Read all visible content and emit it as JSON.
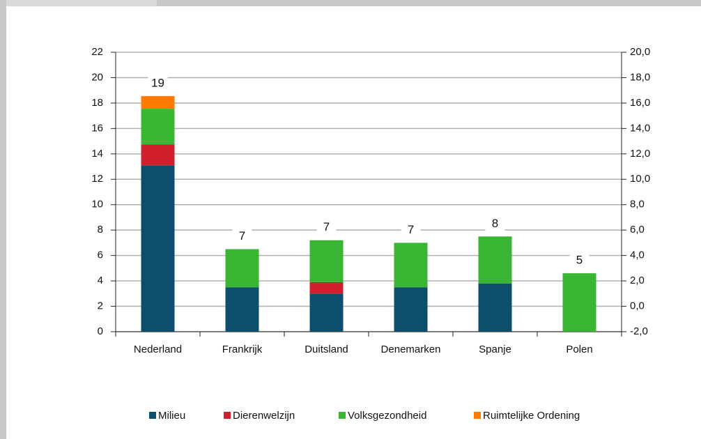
{
  "chart_data": {
    "type": "bar",
    "stacked": true,
    "categories": [
      "Nederland",
      "Frankrijk",
      "Duitsland",
      "Denemarken",
      "Spanje",
      "Polen"
    ],
    "series": [
      {
        "name": "Milieu",
        "color": "#0b4f6c",
        "values": [
          13.1,
          3.5,
          3.0,
          3.5,
          3.8,
          0
        ]
      },
      {
        "name": "Dierenwelzijn",
        "color": "#d0202e",
        "values": [
          1.65,
          0,
          0.9,
          0,
          0,
          0
        ]
      },
      {
        "name": "Volksgezondheid",
        "color": "#3ab534",
        "values": [
          2.8,
          3.0,
          3.3,
          3.5,
          3.7,
          4.6
        ]
      },
      {
        "name": "Ruimtelijke Ordening",
        "color": "#ff7b00",
        "values": [
          1.0,
          0,
          0,
          0,
          0,
          0
        ]
      }
    ],
    "totals": [
      19,
      7,
      7,
      7,
      8,
      5
    ],
    "ylim": [
      0,
      22
    ],
    "yticks": [
      0,
      2,
      4,
      6,
      8,
      10,
      12,
      14,
      16,
      18,
      20,
      22
    ],
    "y2lim": [
      -2,
      20
    ],
    "y2ticks": [
      {
        "value": -2,
        "label": "-2,0"
      },
      {
        "value": 0,
        "label": "0,0"
      },
      {
        "value": 2,
        "label": "2,0"
      },
      {
        "value": 4,
        "label": "4,0"
      },
      {
        "value": 6,
        "label": "6,0"
      },
      {
        "value": 8,
        "label": "8,0"
      },
      {
        "value": 10,
        "label": "10,0"
      },
      {
        "value": 12,
        "label": "12,0"
      },
      {
        "value": 14,
        "label": "14,0"
      },
      {
        "value": 16,
        "label": "16,0"
      },
      {
        "value": 18,
        "label": "18,0"
      },
      {
        "value": 20,
        "label": "20,0"
      }
    ],
    "grid": true,
    "legend": "bottom"
  }
}
